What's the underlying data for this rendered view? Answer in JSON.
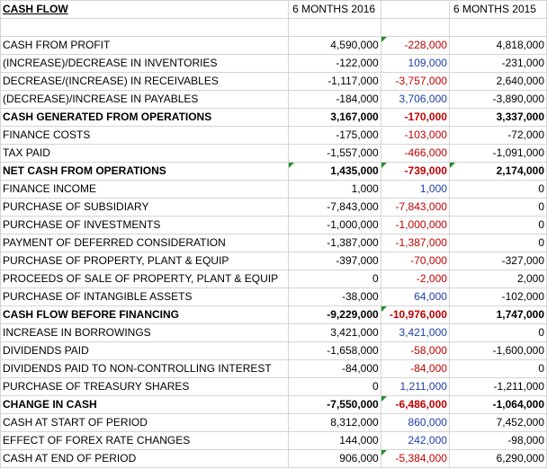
{
  "header": {
    "title": "CASH FLOW",
    "col_a": "6 MONTHS 2016",
    "col_c": "6 MONTHS 2015"
  },
  "rows": [
    {
      "label": "CASH FROM PROFIT",
      "a": "4,590,000",
      "b": "-228,000",
      "c": "4,818,000",
      "bold": false,
      "b_color": "neg"
    },
    {
      "label": "(INCREASE)/DECREASE IN INVENTORIES",
      "a": "-122,000",
      "b": "109,000",
      "c": "-231,000",
      "bold": false,
      "b_color": "pos"
    },
    {
      "label": "DECREASE/(INCREASE) IN RECEIVABLES",
      "a": "-1,117,000",
      "b": "-3,757,000",
      "c": "2,640,000",
      "bold": false,
      "b_color": "neg"
    },
    {
      "label": "(DECREASE)/INCREASE IN PAYABLES",
      "a": "-184,000",
      "b": "3,706,000",
      "c": "-3,890,000",
      "bold": false,
      "b_color": "pos"
    },
    {
      "label": "CASH GENERATED FROM OPERATIONS",
      "a": "3,167,000",
      "b": "-170,000",
      "c": "3,337,000",
      "bold": true,
      "b_color": "neg"
    },
    {
      "label": "FINANCE COSTS",
      "a": "-175,000",
      "b": "-103,000",
      "c": "-72,000",
      "bold": false,
      "b_color": "neg"
    },
    {
      "label": "TAX PAID",
      "a": "-1,557,000",
      "b": "-466,000",
      "c": "-1,091,000",
      "bold": false,
      "b_color": "neg"
    },
    {
      "label": "NET CASH FROM OPERATIONS",
      "a": "1,435,000",
      "b": "-739,000",
      "c": "2,174,000",
      "bold": true,
      "b_color": "neg"
    },
    {
      "label": "FINANCE INCOME",
      "a": "1,000",
      "b": "1,000",
      "c": "0",
      "bold": false,
      "b_color": "pos"
    },
    {
      "label": "PURCHASE OF SUBSIDIARY",
      "a": "-7,843,000",
      "b": "-7,843,000",
      "c": "0",
      "bold": false,
      "b_color": "neg"
    },
    {
      "label": "PURCHASE OF INVESTMENTS",
      "a": "-1,000,000",
      "b": "-1,000,000",
      "c": "0",
      "bold": false,
      "b_color": "neg"
    },
    {
      "label": "PAYMENT OF DEFERRED CONSIDERATION",
      "a": "-1,387,000",
      "b": "-1,387,000",
      "c": "0",
      "bold": false,
      "b_color": "neg"
    },
    {
      "label": "PURCHASE OF PROPERTY, PLANT & EQUIP",
      "a": "-397,000",
      "b": "-70,000",
      "c": "-327,000",
      "bold": false,
      "b_color": "neg"
    },
    {
      "label": "PROCEEDS OF SALE OF PROPERTY, PLANT & EQUIP",
      "a": "0",
      "b": "-2,000",
      "c": "2,000",
      "bold": false,
      "b_color": "neg"
    },
    {
      "label": "PURCHASE OF INTANGIBLE ASSETS",
      "a": "-38,000",
      "b": "64,000",
      "c": "-102,000",
      "bold": false,
      "b_color": "pos"
    },
    {
      "label": "CASH FLOW BEFORE FINANCING",
      "a": "-9,229,000",
      "b": "-10,976,000",
      "c": "1,747,000",
      "bold": true,
      "b_color": "neg"
    },
    {
      "label": "INCREASE IN BORROWINGS",
      "a": "3,421,000",
      "b": "3,421,000",
      "c": "0",
      "bold": false,
      "b_color": "pos"
    },
    {
      "label": "DIVIDENDS PAID",
      "a": "-1,658,000",
      "b": "-58,000",
      "c": "-1,600,000",
      "bold": false,
      "b_color": "neg"
    },
    {
      "label": "DIVIDENDS PAID TO NON-CONTROLLING INTEREST",
      "a": "-84,000",
      "b": "-84,000",
      "c": "0",
      "bold": false,
      "b_color": "neg"
    },
    {
      "label": "PURCHASE OF TREASURY SHARES",
      "a": "0",
      "b": "1,211,000",
      "c": "-1,211,000",
      "bold": false,
      "b_color": "pos"
    },
    {
      "label": "CHANGE IN CASH",
      "a": "-7,550,000",
      "b": "-6,486,000",
      "c": "-1,064,000",
      "bold": true,
      "b_color": "neg"
    },
    {
      "label": "CASH AT START OF PERIOD",
      "a": "8,312,000",
      "b": "860,000",
      "c": "7,452,000",
      "bold": false,
      "b_color": "pos"
    },
    {
      "label": "EFFECT OF FOREX RATE CHANGES",
      "a": "144,000",
      "b": "242,000",
      "c": "-98,000",
      "bold": false,
      "b_color": "pos"
    },
    {
      "label": "CASH AT END OF PERIOD",
      "a": "906,000",
      "b": "-5,384,000",
      "c": "6,290,000",
      "bold": false,
      "b_color": "neg"
    }
  ],
  "colors": {
    "negative": "#c00000",
    "positive": "#1f3fa8",
    "gridline": "#d4d4d4",
    "comment_marker": "#1f8f2a"
  }
}
